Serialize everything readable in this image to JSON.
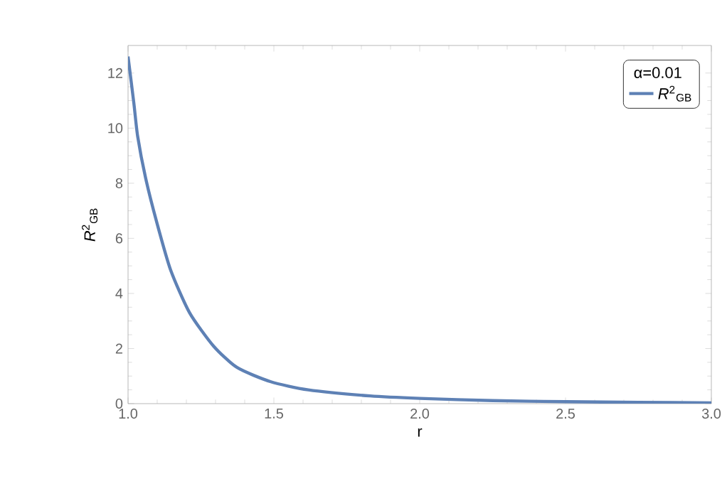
{
  "chart_data": {
    "type": "line",
    "xlabel": "r",
    "ylabel": "*R*$^{2}$$_{GB}$",
    "legend_title": "α=0.01",
    "legend": "top right",
    "x": [
      1.0,
      1.02,
      1.033,
      1.06,
      1.098,
      1.146,
      1.211,
      1.293,
      1.374,
      1.488,
      1.618,
      1.83,
      2.0,
      2.25,
      2.5,
      2.75,
      3.0
    ],
    "series": [
      {
        "name": "*R*$^{2}$$_{GB}$",
        "color": "#5e81b5",
        "values": [
          12.6,
          10.9,
          9.7,
          8.2,
          6.6,
          4.85,
          3.3,
          2.09,
          1.31,
          0.8,
          0.5,
          0.28,
          0.19,
          0.11,
          0.07,
          0.045,
          0.03
        ]
      }
    ],
    "xlim": [
      1,
      3
    ],
    "ylim": [
      0,
      13
    ],
    "xticks": [
      {
        "value": 1,
        "label": "1.0"
      },
      {
        "value": 1.5,
        "label": "1.5"
      },
      {
        "value": 2,
        "label": "2.0"
      },
      {
        "value": 2.5,
        "label": "2.5"
      },
      {
        "value": 3,
        "label": "3.0"
      }
    ],
    "yticks": [
      0,
      2,
      4,
      6,
      8,
      10,
      12
    ]
  }
}
